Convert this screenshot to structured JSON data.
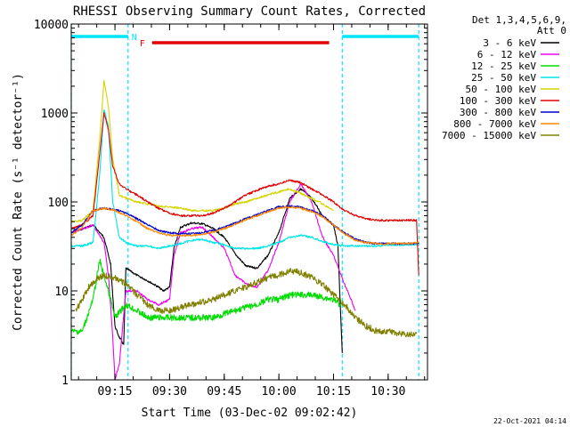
{
  "chart_data": {
    "type": "line",
    "title": "RHESSI Observing Summary Count Rates, Corrected",
    "xlabel": "Start Time (03-Dec-02 09:02:42)",
    "ylabel": "Corrected Count Rate (s⁻¹ detector⁻¹)",
    "yscale": "log",
    "ylim": [
      1,
      10000
    ],
    "xlim_minutes": [
      9.05,
      10.68
    ],
    "y_ticks": [
      {
        "value": 1,
        "label": "1"
      },
      {
        "value": 10,
        "label": "10"
      },
      {
        "value": 100,
        "label": "100"
      },
      {
        "value": 1000,
        "label": "1000"
      },
      {
        "value": 10000,
        "label": "10000"
      }
    ],
    "x_ticks": [
      {
        "value": 9.25,
        "label": "09:15"
      },
      {
        "value": 9.5,
        "label": "09:30"
      },
      {
        "value": 9.75,
        "label": "09:45"
      },
      {
        "value": 10.0,
        "label": "10:00"
      },
      {
        "value": 10.25,
        "label": "10:15"
      },
      {
        "value": 10.5,
        "label": "10:30"
      }
    ],
    "legend_header": [
      "Det 1,3,4,5,6,9,",
      "Att 0"
    ],
    "legend_position": "right",
    "footer_date": "22-Oct-2021 04:14",
    "annotations": {
      "night": {
        "label": "N",
        "color": "#00e5ff",
        "bars": [
          [
            9.05,
            9.31
          ],
          [
            10.29,
            10.64
          ]
        ],
        "boundaries": [
          9.05,
          9.31,
          10.29,
          10.64
        ]
      },
      "flare": {
        "label": "F",
        "color": "#e00000",
        "start": 9.42,
        "end": 10.23
      }
    },
    "series": [
      {
        "name": "3 - 6 keV",
        "color": "#000000",
        "points": [
          [
            9.05,
            45
          ],
          [
            9.15,
            55
          ],
          [
            9.2,
            40
          ],
          [
            9.23,
            20
          ],
          [
            9.25,
            4
          ],
          [
            9.27,
            3
          ],
          [
            9.29,
            2.5
          ],
          [
            9.3,
            18
          ],
          [
            9.35,
            15
          ],
          [
            9.4,
            13
          ],
          [
            9.45,
            11
          ],
          [
            9.47,
            10
          ],
          [
            9.5,
            11
          ],
          [
            9.52,
            30
          ],
          [
            9.55,
            52
          ],
          [
            9.6,
            58
          ],
          [
            9.65,
            57
          ],
          [
            9.7,
            50
          ],
          [
            9.75,
            40
          ],
          [
            9.8,
            26
          ],
          [
            9.85,
            19
          ],
          [
            9.9,
            18
          ],
          [
            9.95,
            25
          ],
          [
            10.0,
            45
          ],
          [
            10.05,
            110
          ],
          [
            10.1,
            140
          ],
          [
            10.15,
            110
          ],
          [
            10.2,
            70
          ],
          [
            10.25,
            55
          ],
          [
            10.27,
            32
          ],
          [
            10.29,
            2
          ]
        ]
      },
      {
        "name": "6 - 12 keV",
        "color": "#ee00ee",
        "points": [
          [
            9.05,
            45
          ],
          [
            9.15,
            55
          ],
          [
            9.2,
            35
          ],
          [
            9.22,
            15
          ],
          [
            9.24,
            3
          ],
          [
            9.25,
            1
          ],
          [
            9.27,
            1.5
          ],
          [
            9.3,
            10
          ],
          [
            9.35,
            10
          ],
          [
            9.4,
            8
          ],
          [
            9.45,
            7
          ],
          [
            9.5,
            8
          ],
          [
            9.52,
            25
          ],
          [
            9.55,
            45
          ],
          [
            9.6,
            50
          ],
          [
            9.65,
            52
          ],
          [
            9.7,
            40
          ],
          [
            9.75,
            30
          ],
          [
            9.8,
            15
          ],
          [
            9.85,
            12
          ],
          [
            9.9,
            11
          ],
          [
            9.95,
            17
          ],
          [
            10.0,
            35
          ],
          [
            10.05,
            100
          ],
          [
            10.1,
            160
          ],
          [
            10.15,
            100
          ],
          [
            10.2,
            40
          ],
          [
            10.25,
            25
          ],
          [
            10.3,
            12
          ],
          [
            10.33,
            8
          ],
          [
            10.35,
            6
          ]
        ]
      },
      {
        "name": "12 - 25 keV",
        "color": "#00dd00",
        "points": [
          [
            9.05,
            3.5
          ],
          [
            9.1,
            3.5
          ],
          [
            9.15,
            8
          ],
          [
            9.18,
            22
          ],
          [
            9.2,
            15
          ],
          [
            9.22,
            10
          ],
          [
            9.25,
            5
          ],
          [
            9.3,
            7
          ],
          [
            9.35,
            6
          ],
          [
            9.4,
            5
          ],
          [
            9.45,
            5
          ],
          [
            9.5,
            5
          ],
          [
            9.55,
            5
          ],
          [
            9.6,
            5
          ],
          [
            9.7,
            5
          ],
          [
            9.75,
            5.5
          ],
          [
            9.8,
            6
          ],
          [
            9.85,
            6.5
          ],
          [
            9.9,
            7
          ],
          [
            9.95,
            8
          ],
          [
            10.0,
            8
          ],
          [
            10.05,
            9
          ],
          [
            10.1,
            9
          ],
          [
            10.15,
            9
          ],
          [
            10.2,
            8.5
          ],
          [
            10.25,
            8
          ],
          [
            10.28,
            7
          ]
        ]
      },
      {
        "name": "25 - 50 keV",
        "color": "#00e5e5",
        "points": [
          [
            9.05,
            32
          ],
          [
            9.1,
            32
          ],
          [
            9.15,
            35
          ],
          [
            9.18,
            200
          ],
          [
            9.2,
            1100
          ],
          [
            9.22,
            700
          ],
          [
            9.24,
            100
          ],
          [
            9.27,
            40
          ],
          [
            9.3,
            35
          ],
          [
            9.35,
            32
          ],
          [
            9.4,
            32
          ],
          [
            9.45,
            30
          ],
          [
            9.5,
            32
          ],
          [
            9.55,
            34
          ],
          [
            9.6,
            37
          ],
          [
            9.65,
            38
          ],
          [
            9.7,
            35
          ],
          [
            9.75,
            33
          ],
          [
            9.8,
            30
          ],
          [
            9.85,
            30
          ],
          [
            9.9,
            30
          ],
          [
            9.95,
            32
          ],
          [
            10.0,
            35
          ],
          [
            10.05,
            40
          ],
          [
            10.1,
            42
          ],
          [
            10.15,
            40
          ],
          [
            10.2,
            36
          ],
          [
            10.25,
            33
          ],
          [
            10.3,
            32
          ],
          [
            10.35,
            32
          ],
          [
            10.4,
            32
          ],
          [
            10.45,
            32
          ],
          [
            10.5,
            33
          ],
          [
            10.55,
            33
          ],
          [
            10.6,
            33
          ],
          [
            10.64,
            33
          ]
        ]
      },
      {
        "name": "50 - 100 keV",
        "color": "#d4d400",
        "points": [
          [
            9.05,
            60
          ],
          [
            9.1,
            62
          ],
          [
            9.15,
            80
          ],
          [
            9.18,
            500
          ],
          [
            9.2,
            2300
          ],
          [
            9.22,
            1200
          ],
          [
            9.24,
            300
          ],
          [
            9.27,
            120
          ],
          [
            9.3,
            110
          ],
          [
            9.35,
            100
          ],
          [
            9.4,
            95
          ],
          [
            9.45,
            90
          ],
          [
            9.5,
            88
          ],
          [
            9.55,
            85
          ],
          [
            9.6,
            80
          ],
          [
            9.65,
            80
          ],
          [
            9.7,
            80
          ],
          [
            9.75,
            85
          ],
          [
            9.8,
            95
          ],
          [
            9.85,
            100
          ],
          [
            9.9,
            110
          ],
          [
            9.95,
            120
          ],
          [
            10.0,
            130
          ],
          [
            10.05,
            140
          ],
          [
            10.1,
            125
          ],
          [
            10.15,
            110
          ],
          [
            10.2,
            95
          ],
          [
            10.25,
            80
          ]
        ]
      },
      {
        "name": "100 - 300 keV",
        "color": "#e00000",
        "points": [
          [
            9.05,
            50
          ],
          [
            9.1,
            55
          ],
          [
            9.15,
            70
          ],
          [
            9.18,
            350
          ],
          [
            9.2,
            1000
          ],
          [
            9.22,
            650
          ],
          [
            9.24,
            250
          ],
          [
            9.27,
            160
          ],
          [
            9.3,
            140
          ],
          [
            9.35,
            120
          ],
          [
            9.4,
            100
          ],
          [
            9.45,
            85
          ],
          [
            9.5,
            75
          ],
          [
            9.55,
            70
          ],
          [
            9.6,
            70
          ],
          [
            9.65,
            70
          ],
          [
            9.7,
            75
          ],
          [
            9.75,
            85
          ],
          [
            9.8,
            100
          ],
          [
            9.85,
            120
          ],
          [
            9.9,
            135
          ],
          [
            9.95,
            150
          ],
          [
            10.0,
            160
          ],
          [
            10.05,
            175
          ],
          [
            10.1,
            165
          ],
          [
            10.15,
            140
          ],
          [
            10.2,
            120
          ],
          [
            10.25,
            100
          ],
          [
            10.3,
            80
          ],
          [
            10.35,
            70
          ],
          [
            10.4,
            65
          ],
          [
            10.45,
            62
          ],
          [
            10.5,
            62
          ],
          [
            10.55,
            62
          ],
          [
            10.6,
            62
          ],
          [
            10.63,
            62
          ],
          [
            10.64,
            15
          ]
        ]
      },
      {
        "name": "300 - 800 keV",
        "color": "#0000cc",
        "points": [
          [
            9.05,
            45
          ],
          [
            9.1,
            55
          ],
          [
            9.15,
            80
          ],
          [
            9.2,
            85
          ],
          [
            9.25,
            82
          ],
          [
            9.3,
            75
          ],
          [
            9.35,
            65
          ],
          [
            9.4,
            55
          ],
          [
            9.45,
            48
          ],
          [
            9.5,
            45
          ],
          [
            9.55,
            44
          ],
          [
            9.6,
            44
          ],
          [
            9.65,
            45
          ],
          [
            9.7,
            48
          ],
          [
            9.75,
            52
          ],
          [
            9.8,
            58
          ],
          [
            9.85,
            65
          ],
          [
            9.9,
            72
          ],
          [
            9.95,
            80
          ],
          [
            10.0,
            88
          ],
          [
            10.05,
            90
          ],
          [
            10.1,
            87
          ],
          [
            10.15,
            80
          ],
          [
            10.2,
            70
          ],
          [
            10.25,
            55
          ],
          [
            10.3,
            45
          ],
          [
            10.35,
            38
          ],
          [
            10.4,
            35
          ],
          [
            10.45,
            34
          ],
          [
            10.5,
            34
          ],
          [
            10.55,
            34
          ],
          [
            10.6,
            34
          ],
          [
            10.64,
            34
          ]
        ]
      },
      {
        "name": "800 - 7000 keV",
        "color": "#ff8800",
        "points": [
          [
            9.05,
            42
          ],
          [
            9.1,
            52
          ],
          [
            9.15,
            80
          ],
          [
            9.2,
            85
          ],
          [
            9.25,
            80
          ],
          [
            9.3,
            70
          ],
          [
            9.35,
            60
          ],
          [
            9.4,
            50
          ],
          [
            9.45,
            45
          ],
          [
            9.5,
            42
          ],
          [
            9.55,
            42
          ],
          [
            9.6,
            42
          ],
          [
            9.65,
            43
          ],
          [
            9.7,
            46
          ],
          [
            9.75,
            50
          ],
          [
            9.8,
            56
          ],
          [
            9.85,
            63
          ],
          [
            9.9,
            70
          ],
          [
            9.95,
            78
          ],
          [
            10.0,
            85
          ],
          [
            10.05,
            88
          ],
          [
            10.1,
            85
          ],
          [
            10.15,
            78
          ],
          [
            10.2,
            68
          ],
          [
            10.25,
            55
          ],
          [
            10.3,
            44
          ],
          [
            10.35,
            37
          ],
          [
            10.4,
            35
          ],
          [
            10.45,
            34
          ],
          [
            10.5,
            34
          ],
          [
            10.55,
            34
          ],
          [
            10.6,
            34
          ],
          [
            10.64,
            35
          ]
        ]
      },
      {
        "name": "7000 - 15000 keV",
        "color": "#808000",
        "points": [
          [
            9.07,
            6
          ],
          [
            9.1,
            8
          ],
          [
            9.13,
            11
          ],
          [
            9.17,
            14
          ],
          [
            9.2,
            15
          ],
          [
            9.25,
            14
          ],
          [
            9.3,
            12
          ],
          [
            9.35,
            9
          ],
          [
            9.4,
            7
          ],
          [
            9.45,
            6
          ],
          [
            9.5,
            6
          ],
          [
            9.55,
            6.5
          ],
          [
            9.6,
            7
          ],
          [
            9.65,
            7.5
          ],
          [
            9.7,
            8
          ],
          [
            9.75,
            9
          ],
          [
            9.8,
            10
          ],
          [
            9.85,
            11
          ],
          [
            9.9,
            12.5
          ],
          [
            9.95,
            14
          ],
          [
            10.0,
            15
          ],
          [
            10.05,
            17
          ],
          [
            10.1,
            16
          ],
          [
            10.15,
            14
          ],
          [
            10.2,
            12
          ],
          [
            10.25,
            9
          ],
          [
            10.3,
            7
          ],
          [
            10.35,
            5
          ],
          [
            10.4,
            4
          ],
          [
            10.45,
            3.5
          ],
          [
            10.5,
            3.5
          ],
          [
            10.55,
            3.3
          ],
          [
            10.6,
            3.3
          ],
          [
            10.63,
            3.3
          ]
        ]
      }
    ]
  }
}
